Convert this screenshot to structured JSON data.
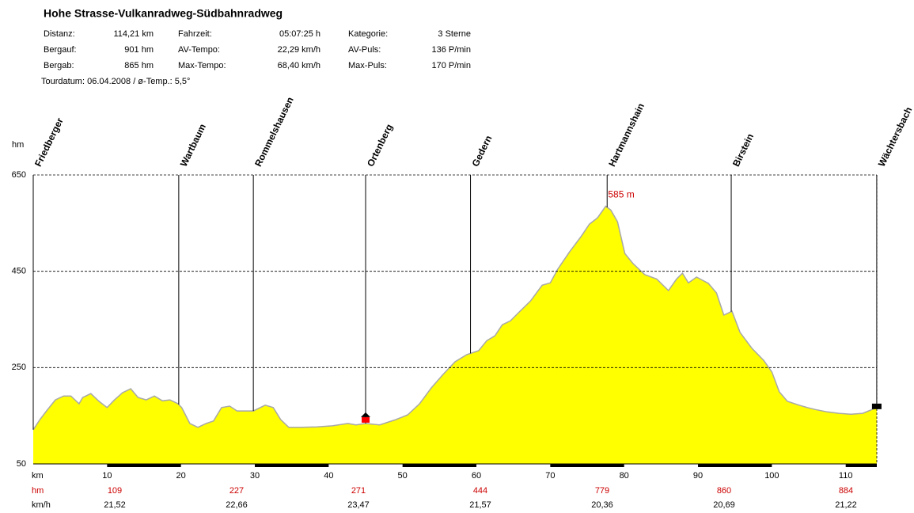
{
  "chart_data": {
    "type": "area",
    "title": "Hohe Strasse-Vulkanradweg-Südbahnradweg",
    "stats": [
      [
        [
          "Distanz:",
          "114,21 km"
        ],
        [
          "Fahrzeit:",
          "05:07:25 h"
        ],
        [
          "Kategorie:",
          "3 Sterne"
        ]
      ],
      [
        [
          "Bergauf:",
          "901 hm"
        ],
        [
          "AV-Tempo:",
          "22,29 km/h"
        ],
        [
          "AV-Puls:",
          "136 P/min"
        ]
      ],
      [
        [
          "Bergab:",
          "865 hm"
        ],
        [
          "Max-Tempo:",
          "68,40 km/h"
        ],
        [
          "Max-Puls:",
          "170 P/min"
        ]
      ]
    ],
    "tour_info": "Tourdatum: 06.04.2008  /  ø-Temp.: 5,5°",
    "y_label": "hm",
    "x_label": "km",
    "x": [
      0,
      0.9,
      1.9,
      3.0,
      4.1,
      5.1,
      6.2,
      6.7,
      7.8,
      8.9,
      10.0,
      11.0,
      12.1,
      13.2,
      14.2,
      15.3,
      16.4,
      17.5,
      18.5,
      19.6,
      20.1,
      21.2,
      22.3,
      23.4,
      24.4,
      25.5,
      26.6,
      27.6,
      28.7,
      29.8,
      31.4,
      32.5,
      33.5,
      34.6,
      36.2,
      38.4,
      40.5,
      42.6,
      43.7,
      45.0,
      46.9,
      49.1,
      50.7,
      52.3,
      53.9,
      55.5,
      57.1,
      58.7,
      60.3,
      61.4,
      62.5,
      63.5,
      64.6,
      65.7,
      67.3,
      68.9,
      70.0,
      71.0,
      72.6,
      74.2,
      75.3,
      76.4,
      77.5,
      78.2,
      79.1,
      80.1,
      81.2,
      82.8,
      84.4,
      86.0,
      87.1,
      87.9,
      88.7,
      89.8,
      91.4,
      92.5,
      93.5,
      94.6,
      95.7,
      97.3,
      98.9,
      100.0,
      101.0,
      102.1,
      103.7,
      104.8,
      105.9,
      107.5,
      109.1,
      110.7,
      112.3,
      113.4,
      114.2
    ],
    "values": [
      121,
      142,
      162,
      183,
      191,
      191,
      175,
      188,
      196,
      180,
      167,
      183,
      198,
      206,
      188,
      183,
      191,
      181,
      183,
      175,
      167,
      134,
      126,
      134,
      139,
      167,
      170,
      160,
      160,
      160,
      172,
      167,
      142,
      126,
      126,
      127,
      129,
      134,
      131,
      134,
      131,
      142,
      152,
      175,
      208,
      236,
      262,
      277,
      285,
      306,
      316,
      339,
      347,
      364,
      388,
      421,
      426,
      454,
      490,
      523,
      548,
      561,
      585,
      577,
      553,
      487,
      466,
      443,
      434,
      410,
      434,
      446,
      426,
      438,
      425,
      405,
      359,
      367,
      323,
      290,
      265,
      241,
      200,
      180,
      172,
      167,
      163,
      158,
      155,
      153,
      155,
      162,
      167
    ],
    "color": "#ffff00",
    "line_color": "#a8a8a8",
    "xlim": [
      0,
      114.21
    ],
    "ylim": [
      50,
      650
    ],
    "yticks": [
      50,
      250,
      450,
      650
    ],
    "xticks": [
      10,
      20,
      30,
      40,
      50,
      60,
      70,
      80,
      90,
      100,
      110
    ],
    "grid": true,
    "waypoints": [
      {
        "name": "Friedberger",
        "km": 0
      },
      {
        "name": "Wartbaum",
        "km": 19.7
      },
      {
        "name": "Rommelshausen",
        "km": 29.8
      },
      {
        "name": "Ortenberg",
        "km": 45.0
      },
      {
        "name": "Gedern",
        "km": 59.2
      },
      {
        "name": "Hartmannshain",
        "km": 77.7
      },
      {
        "name": "Birstein",
        "km": 94.5
      },
      {
        "name": "Wächtersbach",
        "km": 114.2
      }
    ],
    "peak": {
      "x": 77.5,
      "value": 585,
      "label": "585 m"
    },
    "hm_label": "hm",
    "hm_values": [
      109,
      227,
      271,
      444,
      779,
      860,
      884
    ],
    "kmh_label": "km/h",
    "kmh_values": [
      "21,52",
      "22,66",
      "23,47",
      "21,57",
      "20,36",
      "20,69",
      "21,22"
    ]
  }
}
